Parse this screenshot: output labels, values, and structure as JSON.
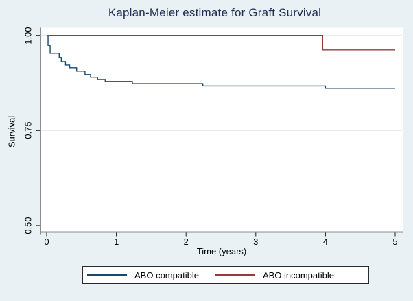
{
  "chart": {
    "title": "Kaplan-Meier estimate for Graft Survival",
    "xlabel": "Time (years)",
    "ylabel": "Survival"
  },
  "chart_data": {
    "type": "line",
    "variant": "kaplan-meier-step-function",
    "title": "Kaplan-Meier estimate for Graft Survival",
    "xlabel": "Time (years)",
    "ylabel": "Survival",
    "xlim": [
      0,
      5
    ],
    "ylim": [
      0.48,
      1.02
    ],
    "x_ticks": [
      0,
      1,
      2,
      3,
      4,
      5
    ],
    "x_tick_labels": [
      "0",
      "1",
      "2",
      "3",
      "4",
      "5"
    ],
    "y_ticks": [
      1.0,
      0.75,
      0.5
    ],
    "y_tick_labels": [
      "1.00",
      "0.75",
      "0.50"
    ],
    "grid": "horizontal",
    "grid_y_values": [
      1.0,
      0.75
    ],
    "legend_position": "bottom",
    "series": [
      {
        "name": "ABO compatible",
        "color": "#1a476f",
        "step_points": [
          [
            0,
            1.0
          ],
          [
            0.02,
            0.974
          ],
          [
            0.05,
            0.953
          ],
          [
            0.18,
            0.942
          ],
          [
            0.21,
            0.931
          ],
          [
            0.27,
            0.922
          ],
          [
            0.33,
            0.915
          ],
          [
            0.43,
            0.906
          ],
          [
            0.55,
            0.897
          ],
          [
            0.63,
            0.89
          ],
          [
            0.73,
            0.884
          ],
          [
            0.84,
            0.879
          ],
          [
            1.23,
            0.873
          ],
          [
            2.24,
            0.867
          ],
          [
            4.0,
            0.861
          ]
        ],
        "end_x": 5
      },
      {
        "name": "ABO incompatible",
        "color": "#963b38",
        "step_points": [
          [
            0,
            1.0
          ],
          [
            3.96,
            0.962
          ]
        ],
        "end_x": 5
      }
    ]
  },
  "colors": {
    "background": "#eaf1f4",
    "plot_background": "#ffffff",
    "title_text": "#1e2d53",
    "gridline": "#dbe9e9",
    "axis_x": "#8c8c8c",
    "axis_y": "#1a1a1a",
    "tick": "#1a1a1a",
    "text": "#000000",
    "legend_border": "#2b2b2b"
  }
}
